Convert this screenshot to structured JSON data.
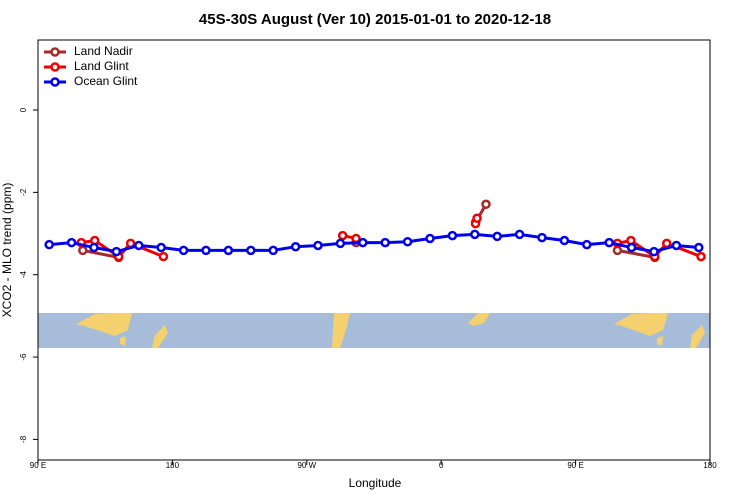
{
  "chart_data": {
    "type": "line",
    "title": "45S-30S August (Ver 10)   2015-01-01 to 2020-12-18",
    "xlabel": "Longitude",
    "ylabel": "XCO2 - MLO trend (ppm)",
    "xlim": [
      90,
      540
    ],
    "ylim": [
      -8.5,
      1.7
    ],
    "xticks": [
      {
        "value": 90,
        "label": "90 E"
      },
      180,
      {
        "value": 270,
        "label": "90 W"
      },
      {
        "value": 360,
        "label": "0"
      },
      {
        "value": 450,
        "label": "90 E"
      },
      {
        "value": 540,
        "label": "180"
      }
    ],
    "yticks": [
      -8,
      -6,
      -4,
      -2,
      0
    ],
    "legend": "top-left",
    "series": [
      {
        "name": "Land Nadir",
        "color": "#a52a2a",
        "x": [
          120,
          144,
          null,
          303,
          null,
          383,
          390,
          null,
          478,
          503
        ],
        "values": [
          -3.41,
          -3.58,
          null,
          -3.22,
          null,
          -2.73,
          -2.29,
          null,
          -3.41,
          -3.58
        ]
      },
      {
        "name": "Land Glint",
        "color": "#ee0000",
        "x": [
          119,
          128,
          144,
          152,
          174,
          null,
          294,
          303,
          null,
          383,
          384,
          null,
          478,
          487,
          503,
          511,
          534
        ],
        "values": [
          -3.22,
          -3.17,
          -3.56,
          -3.24,
          -3.56,
          null,
          -3.05,
          -3.12,
          null,
          -2.76,
          -2.63,
          null,
          -3.24,
          -3.17,
          -3.56,
          -3.24,
          -3.56
        ]
      },
      {
        "name": "Ocean Glint",
        "color": "#0000ee",
        "x": [
          97.5,
          112.5,
          127.5,
          142.5,
          157.5,
          172.5,
          187.5,
          202.5,
          217.5,
          232.5,
          247.5,
          262.5,
          277.5,
          292.5,
          307.5,
          322.5,
          337.5,
          352.5,
          367.5,
          382.5,
          397.5,
          412.5,
          427.5,
          442.5,
          457.5,
          472.5,
          487.5,
          502.5,
          517.5,
          532.5
        ],
        "values": [
          -3.27,
          -3.22,
          -3.34,
          -3.44,
          -3.29,
          -3.34,
          -3.41,
          -3.41,
          -3.41,
          -3.41,
          -3.41,
          -3.32,
          -3.29,
          -3.24,
          -3.22,
          -3.22,
          -3.2,
          -3.12,
          -3.05,
          -3.02,
          -3.07,
          -3.02,
          -3.1,
          -3.17,
          -3.27,
          -3.22,
          -3.34,
          -3.44,
          -3.29,
          -3.34
        ]
      }
    ]
  }
}
